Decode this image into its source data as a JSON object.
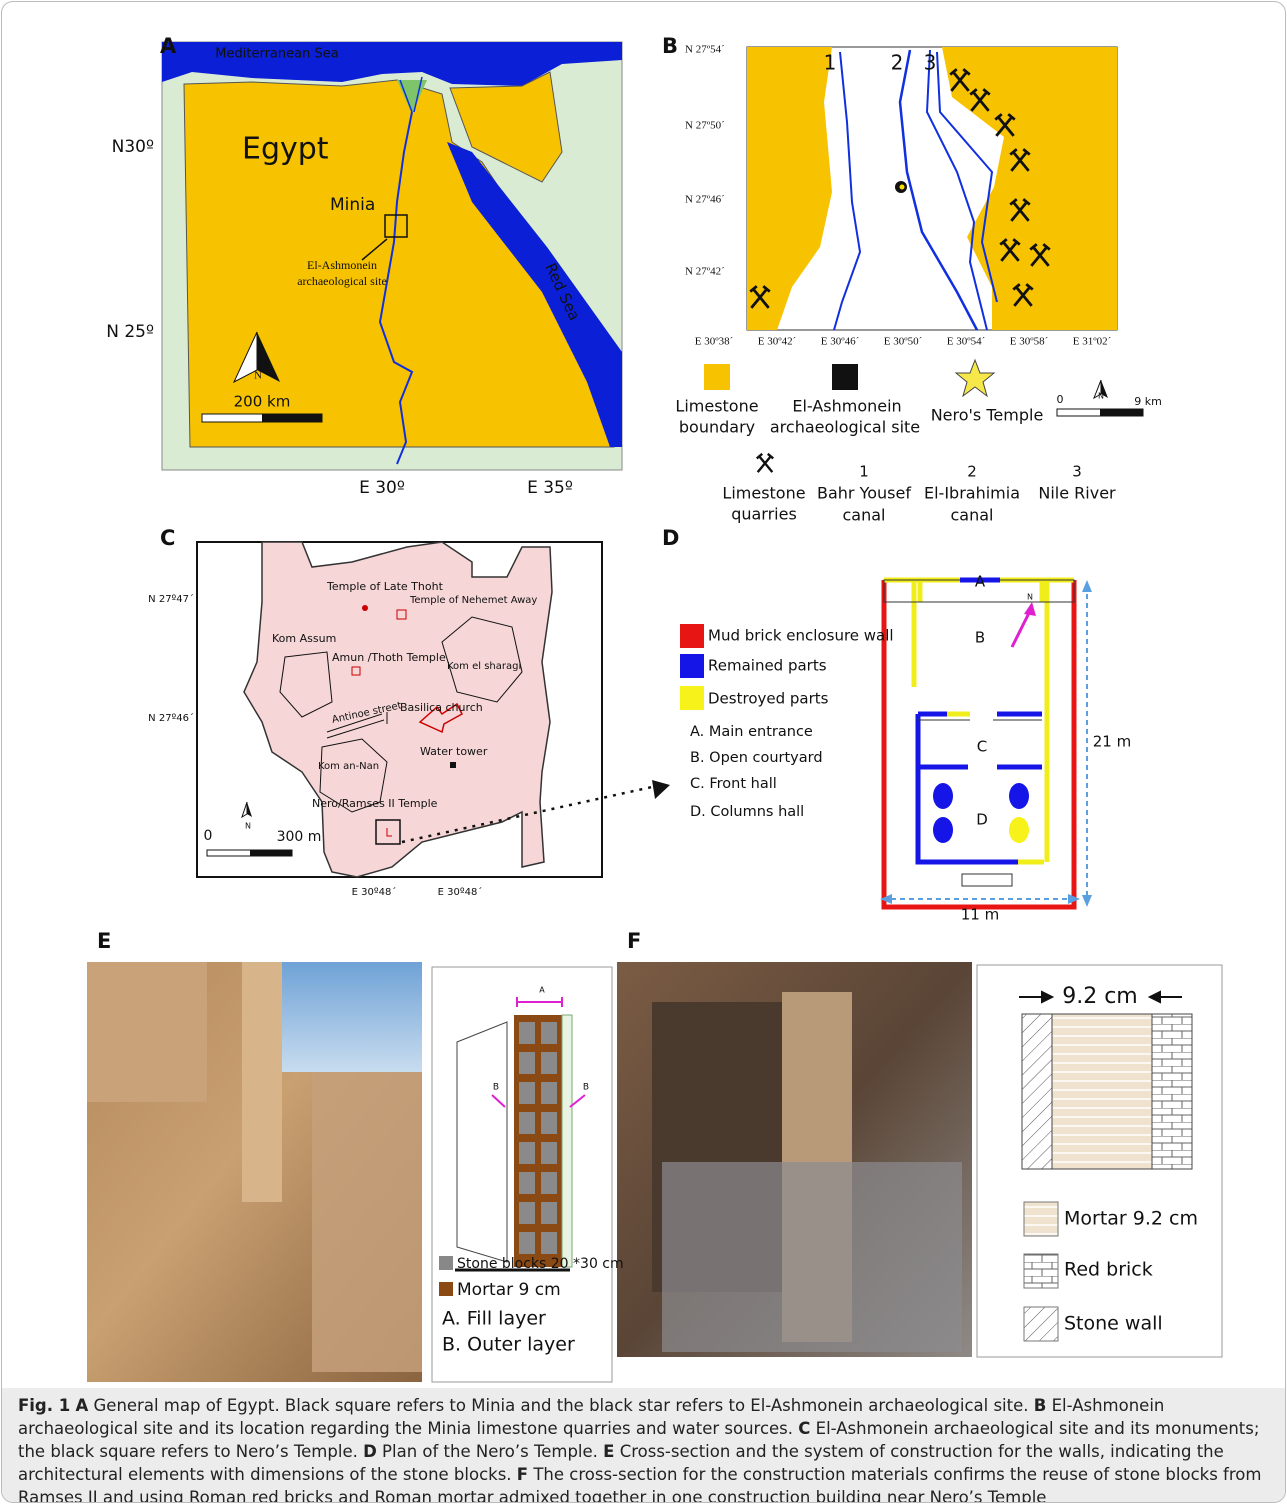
{
  "panel_a": {
    "label": "A",
    "sea": "Mediterranean Sea",
    "country": "Egypt",
    "city": "Minia",
    "site": [
      "El-Ashmonein",
      "archaeological site"
    ],
    "red_sea": "Red Sea",
    "north": "N",
    "scale": "200 km",
    "lat": [
      "N30º",
      "N 25º"
    ],
    "lon": [
      "E 30º",
      "E 35º"
    ]
  },
  "panel_b": {
    "label": "B",
    "lat": [
      "N 27º54´",
      "N 27º50´",
      "N 27º46´",
      "N 27º42´"
    ],
    "lon": [
      "E 30º38´",
      "E 30º42´",
      "E 30º46´",
      "E 30º50´",
      "E 30º54´",
      "E 30º58´",
      "E 31º02´"
    ],
    "river_numbers": [
      "1",
      "2",
      "3"
    ],
    "legend": {
      "limestone": [
        "Limestone",
        "boundary"
      ],
      "site": [
        "El-Ashmonein",
        "archaeological site"
      ],
      "temple": "Nero's Temple",
      "scale_start": "0",
      "scale_end": "9 km",
      "north": "N",
      "quarries": [
        "Limestone",
        "quarries"
      ],
      "rivers": [
        {
          "number": "1",
          "name": [
            "Bahr Yousef",
            "canal"
          ]
        },
        {
          "number": "2",
          "name": [
            "El-Ibrahimia",
            "canal"
          ]
        },
        {
          "number": "3",
          "name": [
            "Nile River"
          ]
        }
      ]
    }
  },
  "panel_c": {
    "label": "C",
    "places": [
      "Temple of Late Thoht",
      "Temple of Nehemet Away",
      "Kom Assum",
      "Amun /Thoth Temple",
      "Kom el sharagi",
      "Antinoe street",
      "Basilica church",
      "Water tower",
      "Kom an-Nan",
      "Nero/Ramses II Temple"
    ],
    "lat": [
      "N 27º47´",
      "N 27º46´"
    ],
    "lon": [
      "E 30º48´",
      "E 30º48´"
    ],
    "scale_start": "0",
    "scale_end": "300 m",
    "north": "N"
  },
  "panel_d": {
    "label": "D",
    "legend": [
      "Mud brick enclosure wall",
      "Remained parts",
      "Destroyed parts"
    ],
    "keys": [
      "A. Main entrance",
      "B. Open courtyard",
      "C. Front hall",
      "D. Columns hall"
    ],
    "plan_letters": [
      "A",
      "B",
      "C",
      "D"
    ],
    "length": "21 m",
    "width": "11 m",
    "north": "N"
  },
  "panel_e": {
    "label": "E",
    "markers": [
      "A",
      "B",
      "B"
    ],
    "legend": [
      "Stone blocks 20 *30 cm",
      "Mortar 9 cm",
      "A. Fill layer",
      "B. Outer layer"
    ]
  },
  "panel_f": {
    "label": "F",
    "width": "9.2 cm",
    "legend": [
      "Mortar 9.2 cm",
      "Red brick",
      "Stone wall"
    ]
  },
  "caption": {
    "label": "Fig. 1",
    "parts": [
      {
        "key": "A",
        "text": "General map of Egypt. Black square refers to Minia and the black star refers to El-Ashmonein archaeological site."
      },
      {
        "key": "B",
        "text": "El-Ashmonein archaeological site and its location regarding the Minia limestone quarries and water sources."
      },
      {
        "key": "C",
        "text": "El-Ashmonein archaeological site and its monuments; the black square refers to Nero’s Temple."
      },
      {
        "key": "D",
        "text": "Plan of the Nero’s Temple."
      },
      {
        "key": "E",
        "text": "Cross-section and the system of construction for the walls, indicating the architectural elements with dimensions of the stone blocks."
      },
      {
        "key": "F",
        "text": "The cross-section for the construction materials confirms the reuse of stone blocks from Ramses II and using Roman red bricks and Roman mortar admixed together in one construction building near Nero’s Temple"
      }
    ]
  }
}
